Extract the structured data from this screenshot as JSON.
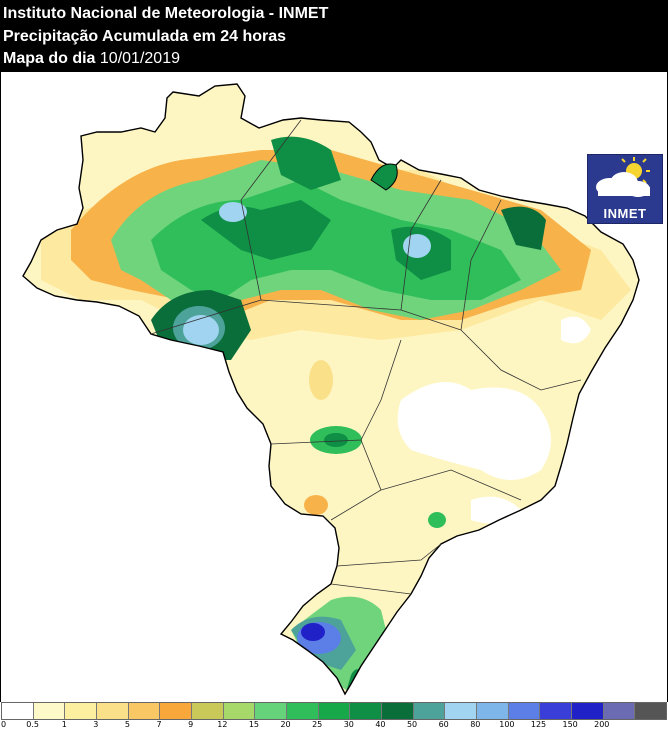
{
  "header": {
    "title": "Instituto Nacional de Meteorologia - INMET",
    "subtitle": "Precipitação Acumulada em 24 horas",
    "date_label": "Mapa do dia",
    "date_value": "10/01/2019"
  },
  "logo": {
    "text": "INMET",
    "icon": "sun-cloud-icon"
  },
  "legend": {
    "ticks": [
      "0",
      "0.5",
      "1",
      "3",
      "5",
      "7",
      "9",
      "12",
      "15",
      "20",
      "25",
      "30",
      "40",
      "50",
      "60",
      "80",
      "100",
      "125",
      "150",
      "200"
    ],
    "colors": [
      "#ffffff",
      "#fef9c8",
      "#fdefa0",
      "#fbe08a",
      "#f9c864",
      "#f8a73a",
      "#c9c95a",
      "#a6d96a",
      "#66d27a",
      "#2fbe5a",
      "#17a84a",
      "#0e8f45",
      "#0a6e3a",
      "#4da39a",
      "#a0d4f0",
      "#7fb6ea",
      "#5b7fe6",
      "#3a3ed8",
      "#2121c8",
      "#6b6bb4",
      "#555555"
    ]
  },
  "map": {
    "country": "Brasil",
    "colors": {
      "very_light": "#fef6c2",
      "light": "#fde9a0",
      "orange": "#f8b24a",
      "olive": "#c9c95a",
      "light_green": "#6fd47c",
      "green": "#2fbe5a",
      "dark_green": "#0e8f45",
      "darker_green": "#0a6e3a",
      "teal": "#4da39a",
      "light_blue": "#a0d4f0",
      "blue": "#5b7fe6",
      "deep_blue": "#2121c8"
    }
  }
}
